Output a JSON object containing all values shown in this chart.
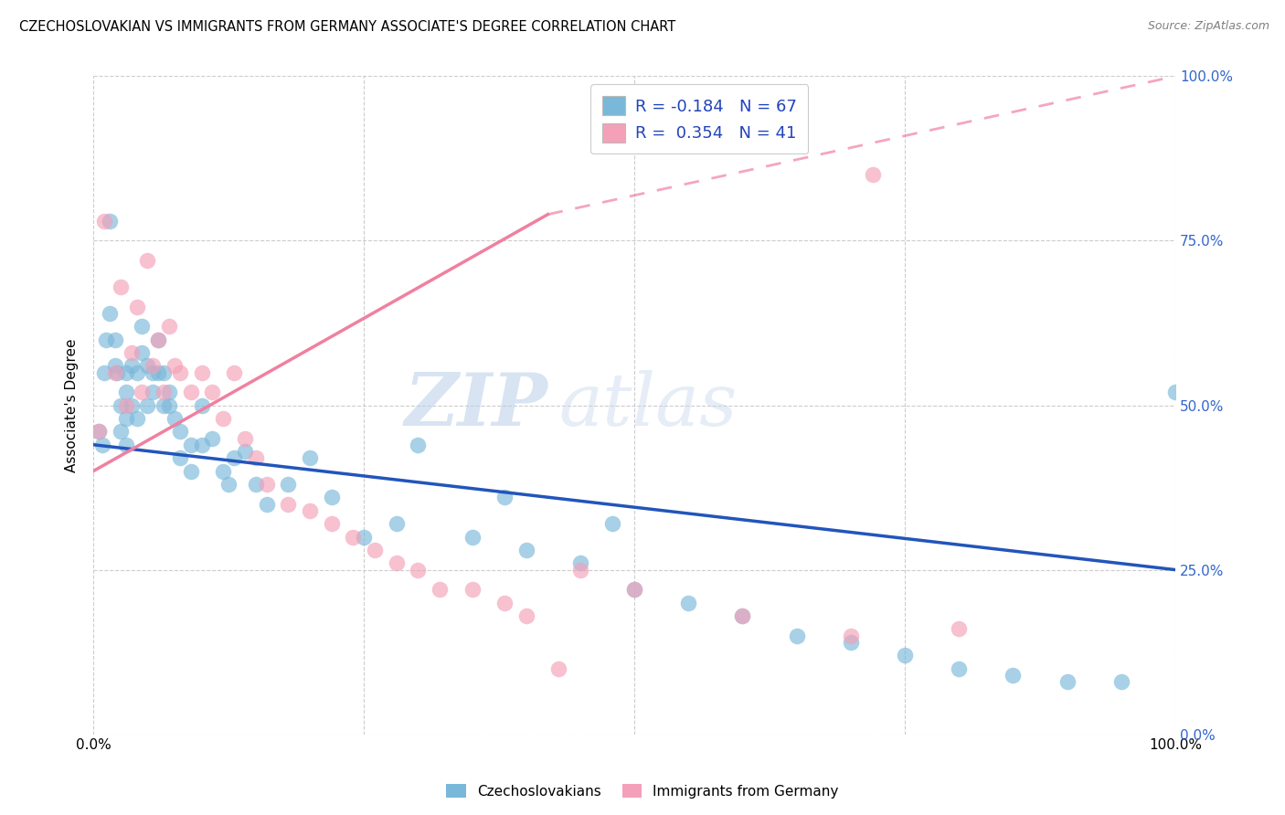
{
  "title": "CZECHOSLOVAKIAN VS IMMIGRANTS FROM GERMANY ASSOCIATE'S DEGREE CORRELATION CHART",
  "source": "Source: ZipAtlas.com",
  "ylabel": "Associate's Degree",
  "yticks_labels": [
    "0.0%",
    "25.0%",
    "50.0%",
    "75.0%",
    "100.0%"
  ],
  "yticks_vals": [
    0.0,
    25.0,
    50.0,
    75.0,
    100.0
  ],
  "xticks_labels": [
    "0.0%",
    "25.0%",
    "50.0%",
    "75.0%",
    "100.0%"
  ],
  "xticks_vals": [
    0.0,
    25.0,
    50.0,
    75.0,
    100.0
  ],
  "legend_label_blue": "Czechoslovakians",
  "legend_label_pink": "Immigrants from Germany",
  "legend_blue_text": "R = -0.184   N = 67",
  "legend_pink_text": "R =  0.354   N = 41",
  "blue_color": "#7ab8d9",
  "pink_color": "#f4a0b8",
  "blue_line_color": "#2255bb",
  "pink_line_color": "#f080a0",
  "watermark_zip": "ZIP",
  "watermark_atlas": "atlas",
  "background_color": "#ffffff",
  "grid_color": "#cccccc",
  "blue_line_x0": 0.0,
  "blue_line_y0": 44.0,
  "blue_line_x1": 100.0,
  "blue_line_y1": 25.0,
  "pink_solid_x0": 0.0,
  "pink_solid_y0": 40.0,
  "pink_solid_x1": 42.0,
  "pink_solid_y1": 79.0,
  "pink_dash_x0": 42.0,
  "pink_dash_y0": 79.0,
  "pink_dash_x1": 100.0,
  "pink_dash_y1": 100.0,
  "blue_scatter_x": [
    0.5,
    0.8,
    1.0,
    1.2,
    1.5,
    1.5,
    2.0,
    2.0,
    2.2,
    2.5,
    2.5,
    3.0,
    3.0,
    3.0,
    3.0,
    3.5,
    3.5,
    4.0,
    4.0,
    4.5,
    4.5,
    5.0,
    5.0,
    5.5,
    5.5,
    6.0,
    6.0,
    6.5,
    6.5,
    7.0,
    7.0,
    7.5,
    8.0,
    8.0,
    9.0,
    9.0,
    10.0,
    10.0,
    11.0,
    12.0,
    12.5,
    13.0,
    14.0,
    15.0,
    16.0,
    18.0,
    20.0,
    22.0,
    25.0,
    28.0,
    30.0,
    35.0,
    40.0,
    45.0,
    50.0,
    55.0,
    60.0,
    65.0,
    70.0,
    75.0,
    80.0,
    85.0,
    90.0,
    95.0,
    100.0,
    38.0,
    48.0
  ],
  "blue_scatter_y": [
    46.0,
    44.0,
    55.0,
    60.0,
    78.0,
    64.0,
    56.0,
    60.0,
    55.0,
    50.0,
    46.0,
    55.0,
    52.0,
    48.0,
    44.0,
    50.0,
    56.0,
    55.0,
    48.0,
    62.0,
    58.0,
    56.0,
    50.0,
    55.0,
    52.0,
    60.0,
    55.0,
    55.0,
    50.0,
    52.0,
    50.0,
    48.0,
    46.0,
    42.0,
    44.0,
    40.0,
    44.0,
    50.0,
    45.0,
    40.0,
    38.0,
    42.0,
    43.0,
    38.0,
    35.0,
    38.0,
    42.0,
    36.0,
    30.0,
    32.0,
    44.0,
    30.0,
    28.0,
    26.0,
    22.0,
    20.0,
    18.0,
    15.0,
    14.0,
    12.0,
    10.0,
    9.0,
    8.0,
    8.0,
    52.0,
    36.0,
    32.0
  ],
  "pink_scatter_x": [
    0.5,
    1.0,
    2.0,
    2.5,
    3.0,
    3.5,
    4.0,
    4.5,
    5.0,
    5.5,
    6.0,
    6.5,
    7.0,
    7.5,
    8.0,
    9.0,
    10.0,
    11.0,
    12.0,
    13.0,
    14.0,
    15.0,
    16.0,
    18.0,
    20.0,
    22.0,
    24.0,
    26.0,
    28.0,
    30.0,
    32.0,
    35.0,
    38.0,
    40.0,
    43.0,
    45.0,
    50.0,
    60.0,
    70.0,
    72.0,
    80.0
  ],
  "pink_scatter_y": [
    46.0,
    78.0,
    55.0,
    68.0,
    50.0,
    58.0,
    65.0,
    52.0,
    72.0,
    56.0,
    60.0,
    52.0,
    62.0,
    56.0,
    55.0,
    52.0,
    55.0,
    52.0,
    48.0,
    55.0,
    45.0,
    42.0,
    38.0,
    35.0,
    34.0,
    32.0,
    30.0,
    28.0,
    26.0,
    25.0,
    22.0,
    22.0,
    20.0,
    18.0,
    10.0,
    25.0,
    22.0,
    18.0,
    15.0,
    85.0,
    16.0
  ]
}
